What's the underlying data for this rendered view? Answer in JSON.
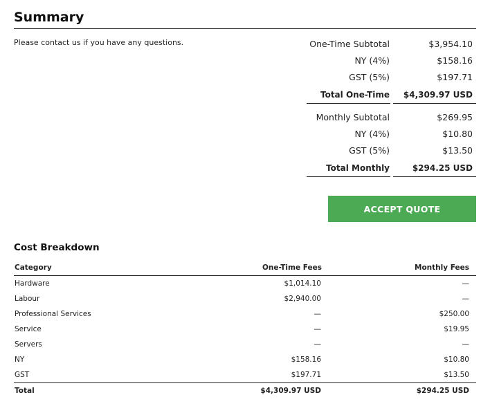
{
  "summary": {
    "title": "Summary",
    "note": "Please contact us if you have any questions.",
    "one_time": {
      "rows": [
        {
          "label": "One-Time Subtotal",
          "value": "$3,954.10"
        },
        {
          "label": "NY (4%)",
          "value": "$158.16"
        },
        {
          "label": "GST (5%)",
          "value": "$197.71"
        }
      ],
      "total": {
        "label": "Total One-Time",
        "value": "$4,309.97 USD"
      }
    },
    "monthly": {
      "rows": [
        {
          "label": "Monthly Subtotal",
          "value": "$269.95"
        },
        {
          "label": "NY (4%)",
          "value": "$10.80"
        },
        {
          "label": "GST (5%)",
          "value": "$13.50"
        }
      ],
      "total": {
        "label": "Total Monthly",
        "value": "$294.25 USD"
      }
    },
    "accept_label": "ACCEPT QUOTE",
    "accent_color": "#4caa55"
  },
  "breakdown": {
    "title": "Cost Breakdown",
    "columns": [
      "Category",
      "One-Time Fees",
      "Monthly Fees"
    ],
    "rows": [
      {
        "category": "Hardware",
        "one_time": "$1,014.10",
        "monthly": "—"
      },
      {
        "category": "Labour",
        "one_time": "$2,940.00",
        "monthly": "—"
      },
      {
        "category": "Professional Services",
        "one_time": "—",
        "monthly": "$250.00"
      },
      {
        "category": "Service",
        "one_time": "—",
        "monthly": "$19.95"
      },
      {
        "category": "Servers",
        "one_time": "—",
        "monthly": "—"
      },
      {
        "category": "NY",
        "one_time": "$158.16",
        "monthly": "$10.80"
      },
      {
        "category": "GST",
        "one_time": "$197.71",
        "monthly": "$13.50"
      }
    ],
    "total": {
      "category": "Total",
      "one_time": "$4,309.97 USD",
      "monthly": "$294.25 USD"
    }
  }
}
